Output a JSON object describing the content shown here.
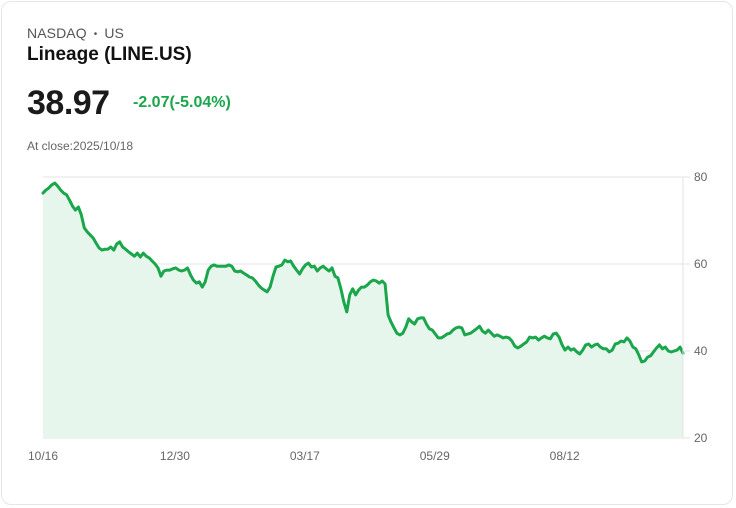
{
  "header": {
    "exchange": "NASDAQ",
    "separator": "•",
    "market": "US",
    "title": "Lineage (LINE.US)",
    "price": "38.97",
    "change": "-2.07(-5.04%)",
    "close_label": "At close:2025/10/18"
  },
  "colors": {
    "line": "#1aa64b",
    "fill": "#e6f6ec",
    "grid": "#e3e3e3",
    "change": "#1aa64b"
  },
  "chart_data": {
    "type": "area",
    "title": "Lineage (LINE.US)",
    "xlabel": "",
    "ylabel": "",
    "ylim": [
      20,
      80
    ],
    "yticks": [
      "80",
      "60",
      "40",
      "20"
    ],
    "ytick_values": [
      80,
      60,
      40,
      20
    ],
    "xticks": [
      {
        "label": "10/16",
        "pos": 0.0
      },
      {
        "label": "12/30",
        "pos": 0.203
      },
      {
        "label": "03/17",
        "pos": 0.406
      },
      {
        "label": "05/29",
        "pos": 0.609
      },
      {
        "label": "08/12",
        "pos": 0.812
      }
    ],
    "grid": true,
    "legend": "none",
    "series": [
      {
        "name": "LINE.US close",
        "values": [
          76.3,
          77.0,
          77.5,
          78.2,
          78.6,
          77.9,
          77.0,
          76.3,
          75.9,
          74.7,
          73.3,
          72.4,
          73.1,
          71.3,
          68.3,
          67.4,
          66.7,
          66.0,
          64.8,
          63.7,
          63.2,
          63.4,
          63.4,
          63.9,
          63.2,
          64.6,
          65.1,
          63.9,
          63.4,
          62.8,
          62.3,
          61.8,
          62.5,
          61.6,
          62.5,
          61.8,
          61.4,
          60.7,
          60.0,
          59.1,
          57.2,
          58.4,
          58.6,
          58.6,
          58.9,
          59.1,
          58.6,
          58.4,
          58.6,
          59.1,
          57.5,
          56.3,
          55.6,
          55.9,
          54.7,
          55.9,
          58.6,
          59.5,
          59.8,
          59.5,
          59.5,
          59.5,
          59.5,
          59.8,
          59.5,
          58.4,
          58.2,
          58.4,
          57.9,
          57.5,
          57.0,
          56.8,
          56.1,
          55.2,
          54.5,
          54.0,
          53.6,
          54.7,
          57.2,
          59.3,
          59.5,
          59.8,
          60.9,
          60.5,
          60.7,
          59.5,
          58.6,
          57.7,
          58.9,
          59.8,
          60.2,
          59.3,
          59.5,
          58.4,
          59.1,
          59.5,
          58.9,
          58.4,
          59.1,
          57.2,
          56.8,
          54.3,
          51.3,
          49.0,
          52.9,
          54.3,
          52.9,
          54.0,
          54.7,
          54.7,
          55.2,
          55.9,
          56.3,
          56.1,
          55.6,
          56.1,
          55.4,
          48.3,
          46.7,
          45.3,
          44.1,
          43.7,
          44.1,
          45.5,
          47.4,
          46.7,
          46.2,
          47.4,
          47.6,
          47.6,
          46.2,
          45.1,
          44.8,
          43.9,
          43.0,
          43.0,
          43.4,
          43.9,
          44.1,
          44.8,
          45.3,
          45.5,
          45.3,
          43.7,
          43.9,
          44.1,
          44.6,
          45.1,
          45.7,
          44.6,
          44.1,
          44.8,
          44.1,
          43.4,
          43.7,
          43.4,
          43.0,
          43.2,
          43.0,
          42.3,
          41.1,
          40.7,
          41.1,
          41.6,
          42.1,
          43.2,
          43.0,
          43.2,
          42.5,
          43.0,
          43.4,
          43.0,
          42.8,
          43.9,
          44.1,
          43.2,
          41.4,
          40.2,
          40.9,
          40.2,
          40.5,
          39.8,
          39.3,
          40.2,
          41.4,
          41.6,
          40.9,
          41.4,
          41.6,
          40.9,
          40.5,
          40.5,
          39.8,
          40.2,
          41.6,
          41.8,
          42.3,
          42.1,
          43.0,
          42.3,
          40.9,
          40.5,
          39.1,
          37.5,
          37.7,
          38.6,
          38.9,
          39.8,
          40.7,
          41.4,
          40.5,
          40.9,
          40.0,
          39.8,
          40.0,
          40.2,
          40.9,
          39.5
        ]
      }
    ]
  }
}
